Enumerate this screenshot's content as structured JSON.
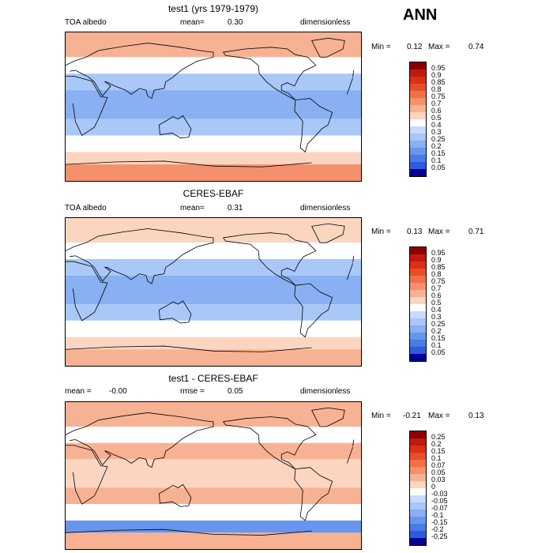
{
  "season": "ANN",
  "palette": {
    "pos": [
      "#fbd5c0",
      "#f7b294",
      "#f4906c",
      "#f07048",
      "#e84e2c",
      "#d93018",
      "#c01a0e",
      "#8b0000"
    ],
    "neg": [
      "#c6dcfb",
      "#a9c8f7",
      "#88b0f2",
      "#6896ec",
      "#4a7be6",
      "#2e5ce0",
      "#1432c8",
      "#000090"
    ],
    "white": "#ffffff",
    "land_line": "#000000"
  },
  "panels": [
    {
      "title": "test1 (yrs 1979-1979)",
      "left_label": "TOA albedo",
      "mid_label": "mean=",
      "mid_value": "0.30",
      "right_label": "dimensionless",
      "min_label": "Min =",
      "min_value": "0.12",
      "max_label": "Max =",
      "max_value": "0.74",
      "colorbar": {
        "labels": [
          "0.95",
          "0.9",
          "0.85",
          "0.8",
          "0.75",
          "0.7",
          "0.6",
          "0.5",
          "0.4",
          "0.3",
          "0.25",
          "0.2",
          "0.15",
          "0.1",
          "0.05"
        ],
        "colors": [
          "#8b0000",
          "#c01a0e",
          "#d93018",
          "#e84e2c",
          "#f07048",
          "#f4906c",
          "#f7b294",
          "#fbd5c0",
          "#ffffff",
          "#c6dcfb",
          "#a9c8f7",
          "#88b0f2",
          "#6896ec",
          "#4a7be6",
          "#2e5ce0",
          "#000090"
        ]
      },
      "chart_data": {
        "type": "heatmap",
        "field": "TOA albedo",
        "xlim": [
          0,
          360
        ],
        "ylim": [
          -90,
          90
        ],
        "mean": 0.3,
        "min": 0.12,
        "max": 0.74,
        "zones": [
          {
            "lat": [
              60,
              90
            ],
            "value": 0.6
          },
          {
            "lat": [
              40,
              60
            ],
            "value": 0.45
          },
          {
            "lat": [
              20,
              40
            ],
            "value": 0.25
          },
          {
            "lat": [
              -15,
              20
            ],
            "value": 0.2
          },
          {
            "lat": [
              -35,
              -15
            ],
            "value": 0.25
          },
          {
            "lat": [
              -55,
              -35
            ],
            "value": 0.4
          },
          {
            "lat": [
              -70,
              -55
            ],
            "value": 0.55
          },
          {
            "lat": [
              -90,
              -70
            ],
            "value": 0.72
          }
        ]
      }
    },
    {
      "title": "CERES-EBAF",
      "left_label": "TOA albedo",
      "mid_label": "mean=",
      "mid_value": "0.31",
      "right_label": "dimensionless",
      "min_label": "Min =",
      "min_value": "0.13",
      "max_label": "Max =",
      "max_value": "0.71",
      "colorbar": {
        "labels": [
          "0.95",
          "0.9",
          "0.85",
          "0.8",
          "0.75",
          "0.7",
          "0.6",
          "0.5",
          "0.4",
          "0.3",
          "0.25",
          "0.2",
          "0.15",
          "0.1",
          "0.05"
        ],
        "colors": [
          "#8b0000",
          "#c01a0e",
          "#d93018",
          "#e84e2c",
          "#f07048",
          "#f4906c",
          "#f7b294",
          "#fbd5c0",
          "#ffffff",
          "#c6dcfb",
          "#a9c8f7",
          "#88b0f2",
          "#6896ec",
          "#4a7be6",
          "#2e5ce0",
          "#000090"
        ]
      },
      "chart_data": {
        "type": "heatmap",
        "field": "TOA albedo",
        "xlim": [
          0,
          360
        ],
        "ylim": [
          -90,
          90
        ],
        "mean": 0.31,
        "min": 0.13,
        "max": 0.71,
        "zones": [
          {
            "lat": [
              60,
              90
            ],
            "value": 0.55
          },
          {
            "lat": [
              40,
              60
            ],
            "value": 0.45
          },
          {
            "lat": [
              20,
              40
            ],
            "value": 0.25
          },
          {
            "lat": [
              -15,
              20
            ],
            "value": 0.22
          },
          {
            "lat": [
              -35,
              -15
            ],
            "value": 0.25
          },
          {
            "lat": [
              -55,
              -35
            ],
            "value": 0.4
          },
          {
            "lat": [
              -70,
              -55
            ],
            "value": 0.52
          },
          {
            "lat": [
              -90,
              -70
            ],
            "value": 0.68
          }
        ]
      }
    },
    {
      "title": "test1 - CERES-EBAF",
      "left_label": "mean =",
      "left_value": "-0.00",
      "mid_label": "rmse =",
      "mid_value": "0.05",
      "right_label": "dimensionless",
      "min_label": "Min =",
      "min_value": "-0.21",
      "max_label": "Max =",
      "max_value": "0.13",
      "colorbar": {
        "labels": [
          "0.25",
          "0.2",
          "0.15",
          "0.1",
          "0.07",
          "0.05",
          "0.03",
          "0",
          "-0.03",
          "-0.05",
          "-0.07",
          "-0.1",
          "-0.15",
          "-0.2",
          "-0.25"
        ],
        "colors": [
          "#8b0000",
          "#c01a0e",
          "#d93018",
          "#e84e2c",
          "#f07048",
          "#f4906c",
          "#f7b294",
          "#fbd5c0",
          "#ffffff",
          "#c6dcfb",
          "#a9c8f7",
          "#88b0f2",
          "#6896ec",
          "#4a7be6",
          "#2e5ce0",
          "#000090"
        ]
      },
      "chart_data": {
        "type": "heatmap",
        "field": "difference",
        "xlim": [
          0,
          360
        ],
        "ylim": [
          -90,
          90
        ],
        "mean": -0.0,
        "rmse": 0.05,
        "min": -0.21,
        "max": 0.13,
        "zones": [
          {
            "lat": [
              60,
              90
            ],
            "value": 0.03
          },
          {
            "lat": [
              40,
              60
            ],
            "value": -0.03
          },
          {
            "lat": [
              20,
              40
            ],
            "value": 0.03
          },
          {
            "lat": [
              -15,
              20
            ],
            "value": 0.0
          },
          {
            "lat": [
              -35,
              -15
            ],
            "value": 0.03
          },
          {
            "lat": [
              -55,
              -35
            ],
            "value": -0.03
          },
          {
            "lat": [
              -70,
              -55
            ],
            "value": -0.15
          },
          {
            "lat": [
              -90,
              -70
            ],
            "value": 0.03
          }
        ]
      }
    }
  ]
}
